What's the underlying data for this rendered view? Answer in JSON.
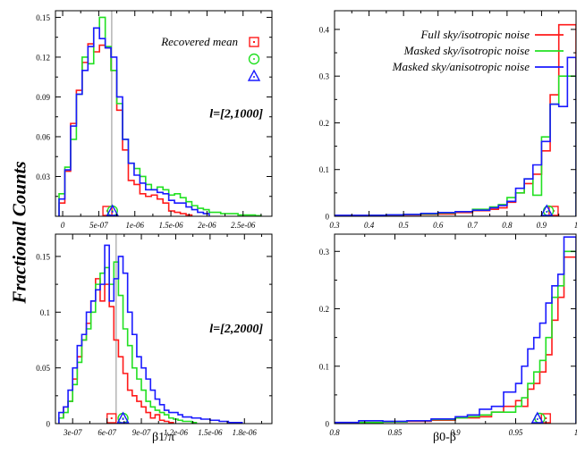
{
  "figure": {
    "ylabel": "Fractional Counts",
    "xlabel_left": "β1/π",
    "xlabel_right": "β0-β"
  },
  "colors": {
    "red": "#ff1a1a",
    "green": "#22e022",
    "blue": "#1a1aff",
    "grid": "#909090"
  },
  "chart_data": [
    {
      "type": "histogram",
      "panel": "top-left",
      "xlim": [
        -1e-07,
        2.9e-06
      ],
      "ylim": [
        0,
        0.155
      ],
      "xticks": [
        0,
        5e-07,
        1e-06,
        1.5e-06,
        2e-06,
        2.5e-06
      ],
      "xticklabels": [
        "0",
        "5e-07",
        "1e-06",
        "1.5e-06",
        "2e-06",
        "2.5e-06"
      ],
      "yticks": [
        0.03,
        0.06,
        0.09,
        0.12,
        0.15
      ],
      "yticklabels": [
        "0.03",
        "0.06",
        "0.09",
        "0.12",
        "0.15"
      ],
      "vline": 6.8e-07,
      "annotation": "l=[2,1000]",
      "legend_title": "Recovered mean",
      "legend_position": "top-right",
      "series": [
        {
          "color": "red",
          "marker": "square",
          "mean": 6.2e-07,
          "edges": [
            -5e-08,
            3e-08,
            1.1e-07,
            1.9e-07,
            2.7e-07,
            3.5e-07,
            4.3e-07,
            5.1e-07,
            5.9e-07,
            6.7e-07,
            7.5e-07,
            8.3e-07,
            9.1e-07,
            9.9e-07,
            1.07e-06,
            1.15e-06,
            1.23e-06,
            1.31e-06,
            1.39e-06,
            1.47e-06,
            1.55e-06,
            1.63e-06,
            1.71e-06,
            1.79e-06
          ],
          "values": [
            0.01,
            0.034,
            0.07,
            0.095,
            0.116,
            0.13,
            0.124,
            0.129,
            0.127,
            0.11,
            0.08,
            0.05,
            0.027,
            0.024,
            0.017,
            0.015,
            0.016,
            0.013,
            0.01,
            0.004,
            0.003,
            0.002,
            0.001
          ]
        },
        {
          "color": "green",
          "marker": "circle",
          "mean": 6.9e-07,
          "edges": [
            -5e-08,
            3e-08,
            1.1e-07,
            1.9e-07,
            2.7e-07,
            3.5e-07,
            4.3e-07,
            5.1e-07,
            5.9e-07,
            6.7e-07,
            7.5e-07,
            8.3e-07,
            9.1e-07,
            9.9e-07,
            1.07e-06,
            1.15e-06,
            1.23e-06,
            1.31e-06,
            1.39e-06,
            1.47e-06,
            1.55e-06,
            1.63e-06,
            1.71e-06,
            1.79e-06,
            1.87e-06,
            1.95e-06,
            2.03e-06,
            2.11e-06,
            2.19e-06,
            2.27e-06,
            2.35e-06,
            2.43e-06,
            2.51e-06,
            2.59e-06,
            2.67e-06,
            2.75e-06
          ],
          "values": [
            0.017,
            0.037,
            0.058,
            0.092,
            0.12,
            0.115,
            0.142,
            0.15,
            0.128,
            0.11,
            0.085,
            0.058,
            0.04,
            0.036,
            0.03,
            0.024,
            0.02,
            0.022,
            0.02,
            0.016,
            0.017,
            0.014,
            0.011,
            0.008,
            0.006,
            0.005,
            0.003,
            0.003,
            0.002,
            0.002,
            0.002,
            0.001,
            0.001,
            0.001,
            0.0005
          ]
        },
        {
          "color": "blue",
          "marker": "triangle",
          "mean": 6.9e-07,
          "edges": [
            -5e-08,
            3e-08,
            1.1e-07,
            1.9e-07,
            2.7e-07,
            3.5e-07,
            4.3e-07,
            5.1e-07,
            5.9e-07,
            6.7e-07,
            7.5e-07,
            8.3e-07,
            9.1e-07,
            9.9e-07,
            1.07e-06,
            1.15e-06,
            1.23e-06,
            1.31e-06,
            1.39e-06,
            1.47e-06,
            1.55e-06,
            1.63e-06,
            1.71e-06,
            1.79e-06,
            1.87e-06,
            1.95e-06,
            2.03e-06
          ],
          "values": [
            0.013,
            0.035,
            0.068,
            0.092,
            0.11,
            0.128,
            0.142,
            0.134,
            0.127,
            0.12,
            0.09,
            0.058,
            0.04,
            0.031,
            0.025,
            0.02,
            0.02,
            0.018,
            0.017,
            0.012,
            0.01,
            0.01,
            0.007,
            0.005,
            0.003,
            0.002
          ]
        }
      ]
    },
    {
      "type": "histogram",
      "panel": "top-right",
      "xlim": [
        0.3,
        1.0
      ],
      "ylim": [
        0,
        0.44
      ],
      "xticks": [
        0.3,
        0.4,
        0.5,
        0.6,
        0.7,
        0.8,
        0.9,
        1.0
      ],
      "xticklabels": [
        "0.3",
        "0.4",
        "0.5",
        "0.6",
        "0.7",
        "0.8",
        "0.9",
        "1"
      ],
      "yticks": [
        0,
        0.1,
        0.2,
        0.3,
        0.4
      ],
      "yticklabels": [
        "0",
        "0.1",
        "0.2",
        "0.3",
        "0.4"
      ],
      "legend_position": "top-right",
      "series": [
        {
          "name": "Full sky/isotropic noise",
          "color": "red",
          "marker": "square",
          "mean": 0.935,
          "edges": [
            0.3,
            0.35,
            0.4,
            0.45,
            0.5,
            0.55,
            0.6,
            0.65,
            0.7,
            0.75,
            0.775,
            0.8,
            0.825,
            0.85,
            0.875,
            0.9,
            0.925,
            0.95,
            0.975,
            1.0
          ],
          "values": [
            0.001,
            0.001,
            0.002,
            0.002,
            0.003,
            0.004,
            0.005,
            0.008,
            0.012,
            0.015,
            0.018,
            0.03,
            0.05,
            0.07,
            0.09,
            0.14,
            0.26,
            0.41,
            0.41
          ]
        },
        {
          "name": "Masked sky/isotropic noise",
          "color": "green",
          "marker": "circle",
          "mean": 0.92,
          "edges": [
            0.3,
            0.35,
            0.4,
            0.45,
            0.5,
            0.55,
            0.6,
            0.65,
            0.7,
            0.75,
            0.775,
            0.8,
            0.825,
            0.85,
            0.875,
            0.9,
            0.925,
            0.95,
            0.975,
            1.0
          ],
          "values": [
            0.001,
            0.001,
            0.002,
            0.003,
            0.004,
            0.005,
            0.007,
            0.01,
            0.015,
            0.02,
            0.025,
            0.04,
            0.05,
            0.08,
            0.045,
            0.17,
            0.24,
            0.3,
            0.3
          ]
        },
        {
          "name": "Masked sky/anisotropic noise",
          "color": "blue",
          "marker": "triangle",
          "mean": 0.915,
          "edges": [
            0.3,
            0.35,
            0.4,
            0.45,
            0.5,
            0.55,
            0.6,
            0.65,
            0.7,
            0.75,
            0.775,
            0.8,
            0.825,
            0.85,
            0.875,
            0.9,
            0.925,
            0.95,
            0.975,
            1.0
          ],
          "values": [
            0.002,
            0.002,
            0.002,
            0.003,
            0.004,
            0.006,
            0.008,
            0.01,
            0.013,
            0.018,
            0.023,
            0.032,
            0.06,
            0.08,
            0.11,
            0.16,
            0.24,
            0.235,
            0.34
          ]
        }
      ]
    },
    {
      "type": "histogram",
      "panel": "bottom-left",
      "xlim": [
        1.5e-07,
        2.04e-06
      ],
      "ylim": [
        0,
        0.17
      ],
      "xticks": [
        3e-07,
        6e-07,
        9e-07,
        1.2e-06,
        1.5e-06,
        1.8e-06
      ],
      "xticklabels": [
        "3e-07",
        "6e-07",
        "9e-07",
        "1.2e-06",
        "1.5e-06",
        "1.8e-06"
      ],
      "yticks": [
        0,
        0.05,
        0.1,
        0.15
      ],
      "yticklabels": [
        "0",
        "0.05",
        "0.1",
        "0.15"
      ],
      "vline": 6.8e-07,
      "annotation": "l=[2,2000]",
      "series": [
        {
          "color": "red",
          "marker": "square",
          "mean": 6.4e-07,
          "edges": [
            1.8e-07,
            2.2e-07,
            2.6e-07,
            3e-07,
            3.4e-07,
            3.8e-07,
            4.2e-07,
            4.6e-07,
            5e-07,
            5.4e-07,
            5.8e-07,
            6.2e-07,
            6.6e-07,
            7e-07,
            7.4e-07,
            7.8e-07,
            8.2e-07,
            8.6e-07,
            9e-07,
            9.4e-07,
            9.8e-07,
            1.02e-06,
            1.06e-06,
            1.1e-06,
            1.14e-06,
            1.18e-06
          ],
          "values": [
            0.005,
            0.015,
            0.02,
            0.04,
            0.06,
            0.075,
            0.09,
            0.11,
            0.13,
            0.11,
            0.125,
            0.105,
            0.075,
            0.06,
            0.045,
            0.03,
            0.025,
            0.02,
            0.015,
            0.01,
            0.005,
            0.008,
            0.003,
            0.002,
            0.001
          ]
        },
        {
          "color": "green",
          "marker": "circle",
          "mean": 7.4e-07,
          "edges": [
            1.8e-07,
            2.2e-07,
            2.6e-07,
            3e-07,
            3.4e-07,
            3.8e-07,
            4.2e-07,
            4.6e-07,
            5e-07,
            5.4e-07,
            5.8e-07,
            6.2e-07,
            6.6e-07,
            7e-07,
            7.4e-07,
            7.8e-07,
            8.2e-07,
            8.6e-07,
            9e-07,
            9.4e-07,
            9.8e-07,
            1.02e-06,
            1.06e-06,
            1.1e-06,
            1.14e-06,
            1.18e-06,
            1.22e-06,
            1.26e-06,
            1.3e-06,
            1.34e-06,
            1.38e-06
          ],
          "values": [
            0.005,
            0.01,
            0.02,
            0.035,
            0.055,
            0.075,
            0.085,
            0.1,
            0.125,
            0.135,
            0.14,
            0.125,
            0.145,
            0.115,
            0.085,
            0.07,
            0.05,
            0.04,
            0.03,
            0.02,
            0.015,
            0.012,
            0.01,
            0.008,
            0.005,
            0.004,
            0.003,
            0.002,
            0.002,
            0.001
          ]
        },
        {
          "color": "blue",
          "marker": "triangle",
          "mean": 7.4e-07,
          "edges": [
            1.8e-07,
            2.2e-07,
            2.6e-07,
            3e-07,
            3.4e-07,
            3.8e-07,
            4.2e-07,
            4.6e-07,
            5e-07,
            5.4e-07,
            5.8e-07,
            6.2e-07,
            6.6e-07,
            7e-07,
            7.4e-07,
            7.8e-07,
            8.2e-07,
            8.6e-07,
            9e-07,
            9.4e-07,
            9.8e-07,
            1.02e-06,
            1.06e-06,
            1.1e-06,
            1.14e-06,
            1.18e-06,
            1.22e-06,
            1.26e-06,
            1.3e-06,
            1.34e-06,
            1.38e-06,
            1.42e-06,
            1.46e-06,
            1.5e-06,
            1.54e-06,
            1.58e-06,
            1.62e-06,
            1.66e-06,
            1.7e-06,
            1.74e-06,
            1.78e-06
          ],
          "values": [
            0.01,
            0.015,
            0.03,
            0.05,
            0.07,
            0.08,
            0.1,
            0.11,
            0.12,
            0.125,
            0.16,
            0.11,
            0.13,
            0.15,
            0.135,
            0.1,
            0.08,
            0.06,
            0.05,
            0.04,
            0.03,
            0.022,
            0.017,
            0.012,
            0.01,
            0.01,
            0.008,
            0.006,
            0.006,
            0.005,
            0.005,
            0.004,
            0.004,
            0.003,
            0.003,
            0.002,
            0.002,
            0.001,
            0.001,
            0.001
          ]
        }
      ]
    },
    {
      "type": "histogram",
      "panel": "bottom-right",
      "xlim": [
        0.8,
        1.0
      ],
      "ylim": [
        0,
        0.33
      ],
      "xticks": [
        0.8,
        0.85,
        0.9,
        0.95,
        1.0
      ],
      "xticklabels": [
        "0.8",
        "0.85",
        "0.9",
        "0.95",
        "1"
      ],
      "yticks": [
        0,
        0.1,
        0.2,
        0.3
      ],
      "yticklabels": [
        "0",
        "0.1",
        "0.2",
        "0.3"
      ],
      "series": [
        {
          "color": "red",
          "marker": "square",
          "mean": 0.975,
          "edges": [
            0.8,
            0.82,
            0.84,
            0.86,
            0.88,
            0.9,
            0.91,
            0.92,
            0.93,
            0.94,
            0.95,
            0.955,
            0.96,
            0.965,
            0.97,
            0.975,
            0.98,
            0.985,
            0.99,
            0.995,
            1.0
          ],
          "values": [
            0.0,
            0.002,
            0.003,
            0.004,
            0.006,
            0.01,
            0.01,
            0.012,
            0.02,
            0.03,
            0.04,
            0.03,
            0.06,
            0.07,
            0.09,
            0.12,
            0.18,
            0.22,
            0.29,
            0.29
          ]
        },
        {
          "color": "green",
          "marker": "circle",
          "mean": 0.97,
          "edges": [
            0.8,
            0.82,
            0.84,
            0.86,
            0.88,
            0.9,
            0.91,
            0.92,
            0.93,
            0.94,
            0.95,
            0.955,
            0.96,
            0.965,
            0.97,
            0.975,
            0.98,
            0.985,
            0.99,
            0.995,
            1.0
          ],
          "values": [
            0.001,
            0.002,
            0.003,
            0.005,
            0.007,
            0.01,
            0.012,
            0.015,
            0.02,
            0.02,
            0.03,
            0.045,
            0.07,
            0.09,
            0.11,
            0.15,
            0.22,
            0.24,
            0.3,
            0.3
          ]
        },
        {
          "color": "blue",
          "marker": "triangle",
          "mean": 0.968,
          "edges": [
            0.8,
            0.82,
            0.84,
            0.86,
            0.88,
            0.9,
            0.91,
            0.92,
            0.93,
            0.94,
            0.95,
            0.955,
            0.96,
            0.965,
            0.97,
            0.975,
            0.98,
            0.985,
            0.99,
            0.995,
            1.0
          ],
          "values": [
            0.002,
            0.005,
            0.004,
            0.005,
            0.008,
            0.012,
            0.015,
            0.025,
            0.03,
            0.055,
            0.07,
            0.1,
            0.13,
            0.15,
            0.175,
            0.21,
            0.24,
            0.26,
            0.325,
            0.325
          ]
        }
      ]
    }
  ]
}
